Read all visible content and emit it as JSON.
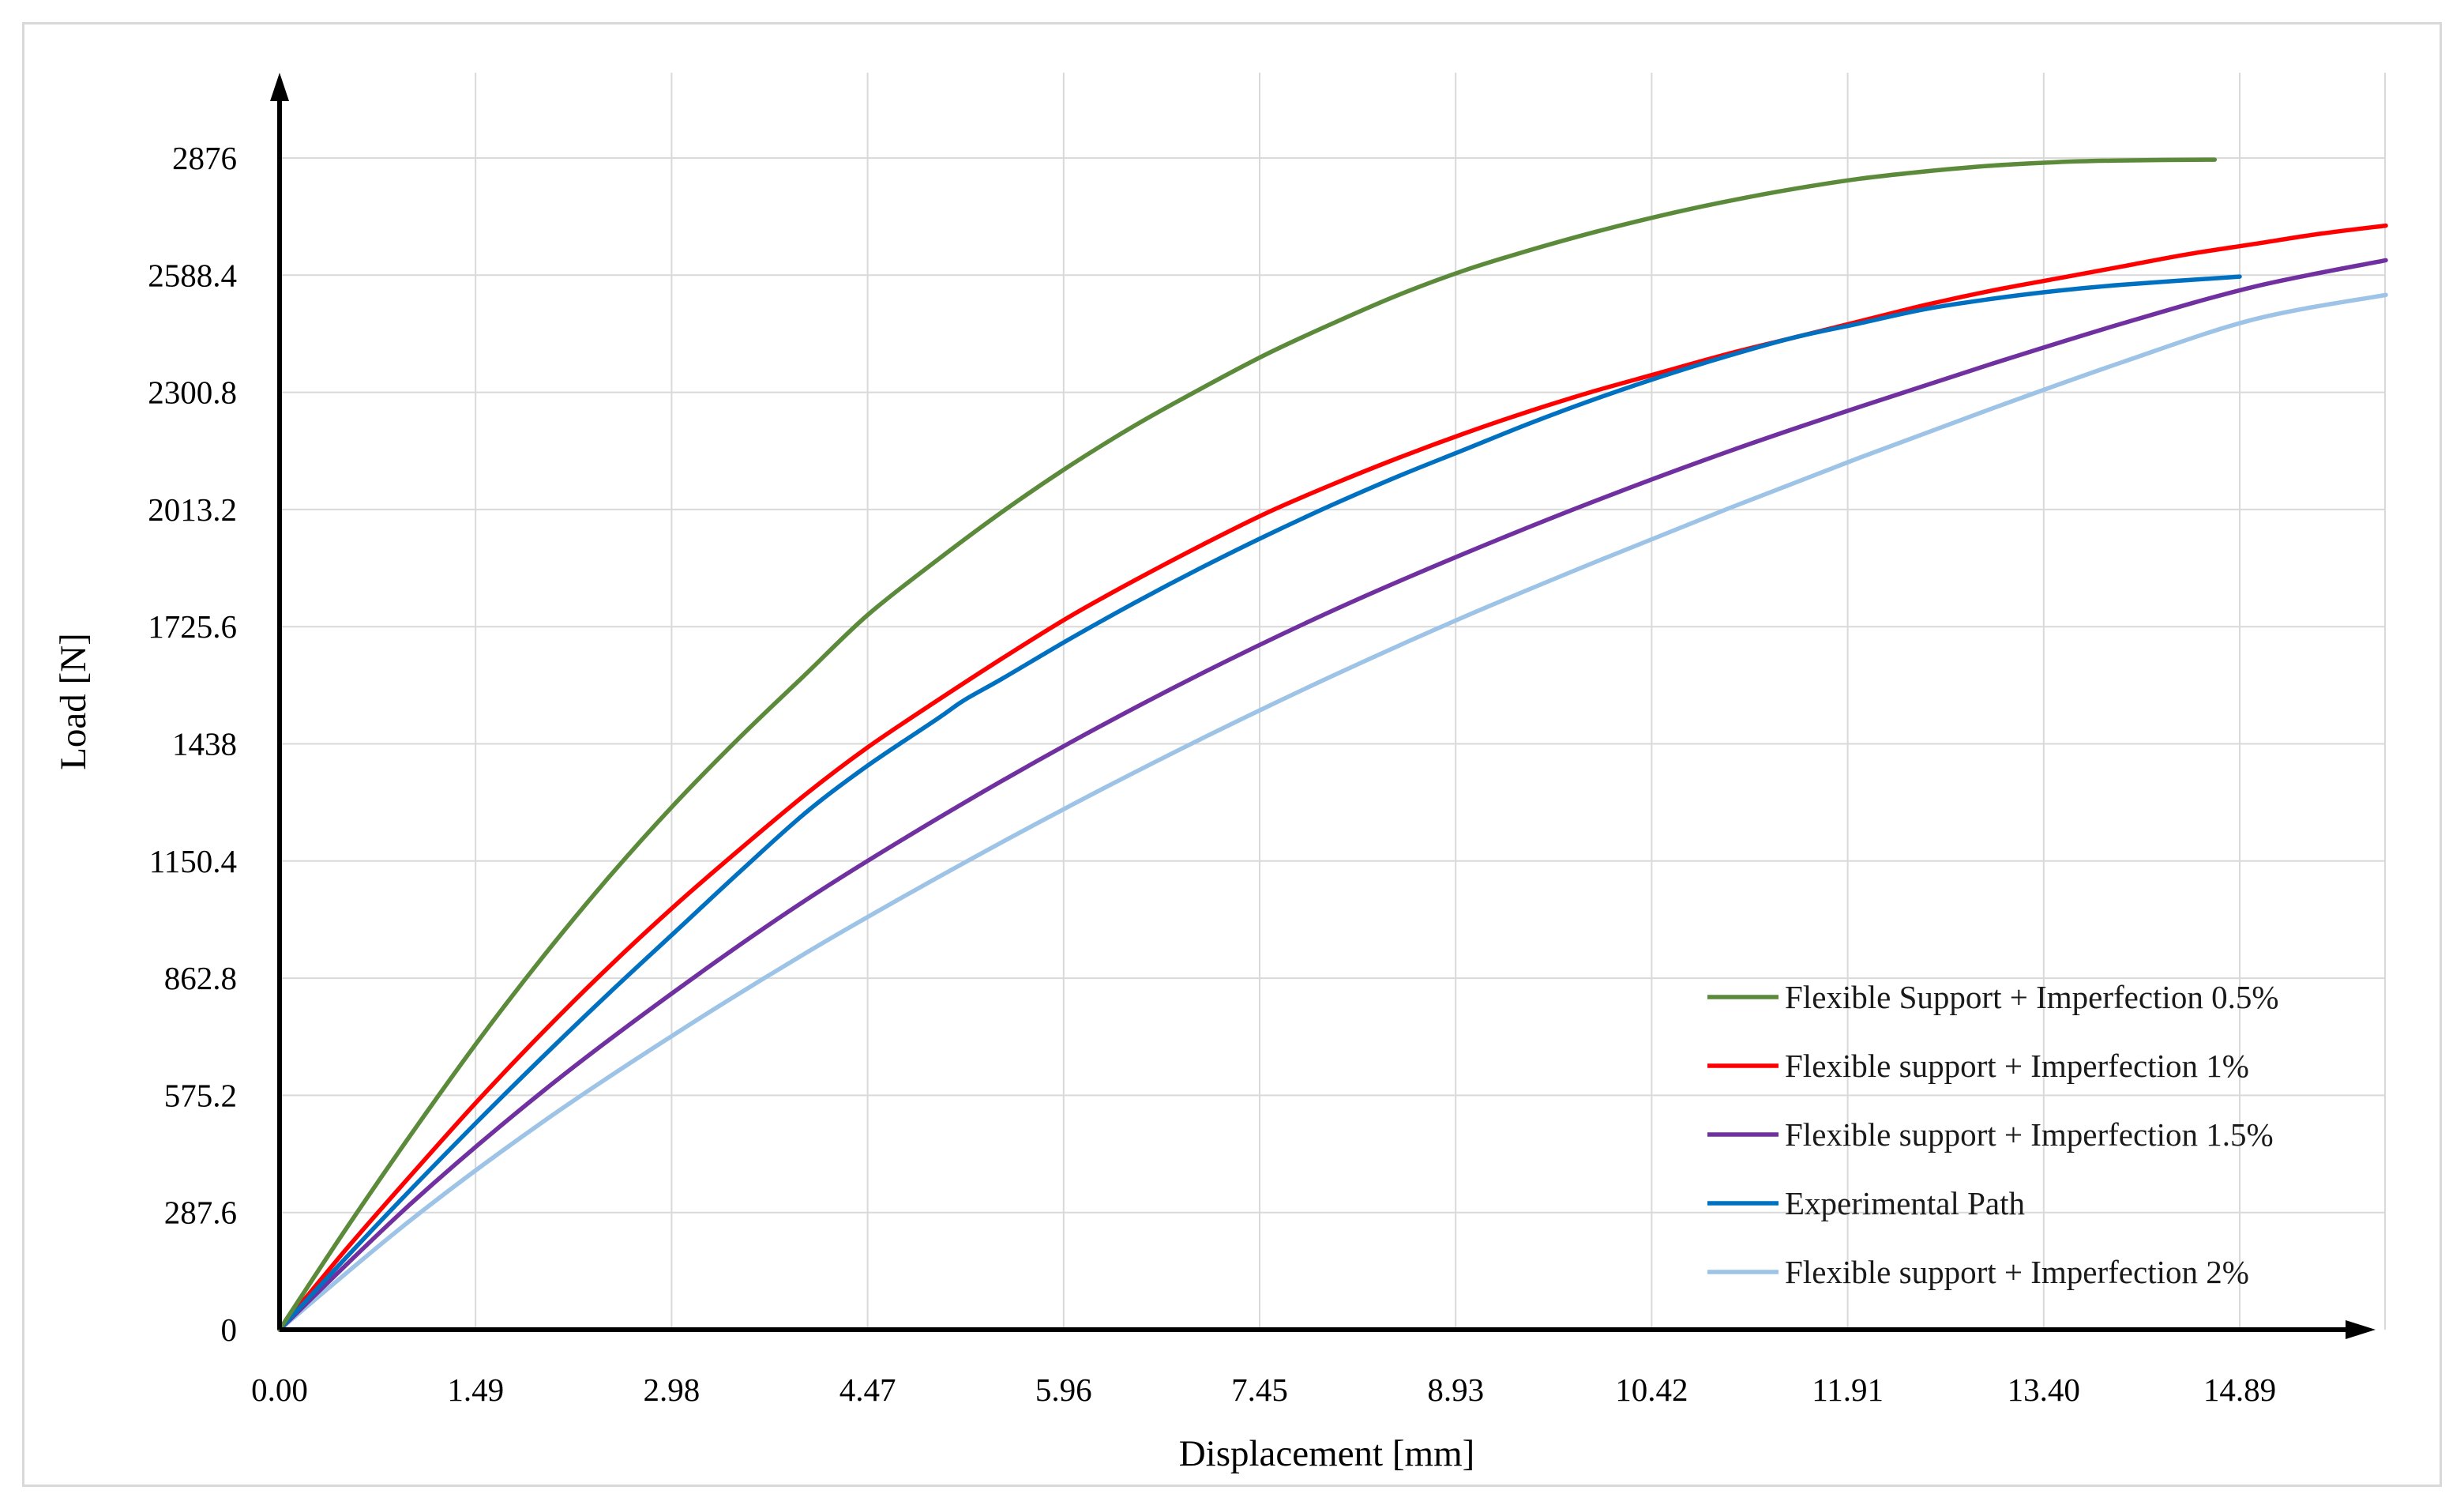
{
  "chart_data": {
    "type": "line",
    "title": "",
    "xlabel": "Displacement [mm]",
    "ylabel": "Load [N]",
    "x_ticks": [
      "0.00",
      "1.49",
      "2.98",
      "4.47",
      "5.96",
      "7.45",
      "8.93",
      "10.42",
      "11.91",
      "13.40",
      "14.89"
    ],
    "y_ticks": [
      "0",
      "287.6",
      "575.2",
      "862.8",
      "1150.4",
      "1438",
      "1725.6",
      "2013.2",
      "2300.8",
      "2588.4",
      "2876"
    ],
    "xlim": [
      0,
      16
    ],
    "ylim": [
      0,
      2876
    ],
    "grid": true,
    "legend_position": "bottom-right",
    "series": [
      {
        "name": "Flexible Support + Imperfection 0.5%",
        "color": "#5b8a3a",
        "x": [
          0,
          0.5,
          1.0,
          1.5,
          2.0,
          2.5,
          3.0,
          3.5,
          4.0,
          4.47,
          5.0,
          5.5,
          6.0,
          6.5,
          7.0,
          7.5,
          8.0,
          8.5,
          9.0,
          9.5,
          10.0,
          10.5,
          11.0,
          11.5,
          12.0,
          12.5,
          13.0,
          13.5,
          14.0,
          14.7
        ],
        "y": [
          0,
          245,
          480,
          705,
          915,
          1110,
          1290,
          1455,
          1610,
          1755,
          1890,
          2010,
          2120,
          2220,
          2310,
          2395,
          2470,
          2540,
          2600,
          2650,
          2695,
          2735,
          2770,
          2800,
          2825,
          2843,
          2857,
          2866,
          2870,
          2872
        ]
      },
      {
        "name": "Flexible support + Imperfection 1%",
        "color": "#ff0000",
        "x": [
          0,
          0.5,
          1.0,
          1.5,
          2.0,
          2.5,
          3.0,
          3.5,
          4.0,
          4.47,
          5.0,
          5.5,
          6.0,
          6.5,
          7.0,
          7.5,
          8.0,
          8.5,
          9.0,
          9.5,
          10.0,
          10.5,
          11.0,
          11.5,
          12.0,
          12.5,
          13.0,
          13.5,
          14.0,
          14.5,
          15.0,
          15.5,
          16.0
        ],
        "y": [
          0,
          195,
          380,
          560,
          730,
          890,
          1040,
          1180,
          1315,
          1430,
          1545,
          1650,
          1750,
          1840,
          1925,
          2005,
          2075,
          2140,
          2200,
          2255,
          2305,
          2350,
          2395,
          2435,
          2475,
          2515,
          2550,
          2580,
          2610,
          2640,
          2665,
          2690,
          2710
        ]
      },
      {
        "name": "Flexible support + Imperfection 1.5%",
        "color": "#7030a0",
        "x": [
          0,
          1.0,
          2.0,
          3.0,
          4.0,
          5.0,
          6.0,
          7.0,
          8.0,
          9.0,
          10.0,
          11.0,
          12.0,
          13.0,
          14.0,
          15.0,
          16.0
        ],
        "y": [
          0,
          310,
          585,
          830,
          1055,
          1255,
          1440,
          1610,
          1765,
          1905,
          2035,
          2155,
          2265,
          2370,
          2470,
          2560,
          2625
        ]
      },
      {
        "name": "Experimental Path",
        "color": "#0070c0",
        "x": [
          0,
          0.5,
          1.0,
          1.5,
          2.0,
          2.5,
          3.0,
          3.5,
          4.0,
          4.47,
          5.0,
          5.2,
          5.5,
          6.0,
          6.5,
          7.0,
          7.5,
          8.0,
          8.5,
          9.0,
          9.5,
          10.0,
          10.5,
          11.0,
          11.5,
          12.0,
          12.5,
          13.0,
          13.5,
          14.0,
          14.89
        ],
        "y": [
          0,
          175,
          345,
          510,
          670,
          825,
          975,
          1125,
          1270,
          1385,
          1500,
          1545,
          1600,
          1695,
          1785,
          1870,
          1950,
          2025,
          2095,
          2160,
          2225,
          2285,
          2340,
          2390,
          2435,
          2470,
          2505,
          2530,
          2550,
          2565,
          2585
        ]
      },
      {
        "name": "Flexible support + Imperfection 2%",
        "color": "#9dc3e6",
        "x": [
          0,
          1.0,
          2.0,
          3.0,
          4.0,
          5.0,
          6.0,
          7.0,
          8.0,
          9.0,
          10.0,
          11.0,
          12.0,
          13.0,
          14.0,
          15.0,
          16.0
        ],
        "y": [
          0,
          270,
          510,
          725,
          925,
          1110,
          1285,
          1450,
          1605,
          1750,
          1885,
          2015,
          2140,
          2260,
          2375,
          2480,
          2540
        ]
      }
    ]
  }
}
